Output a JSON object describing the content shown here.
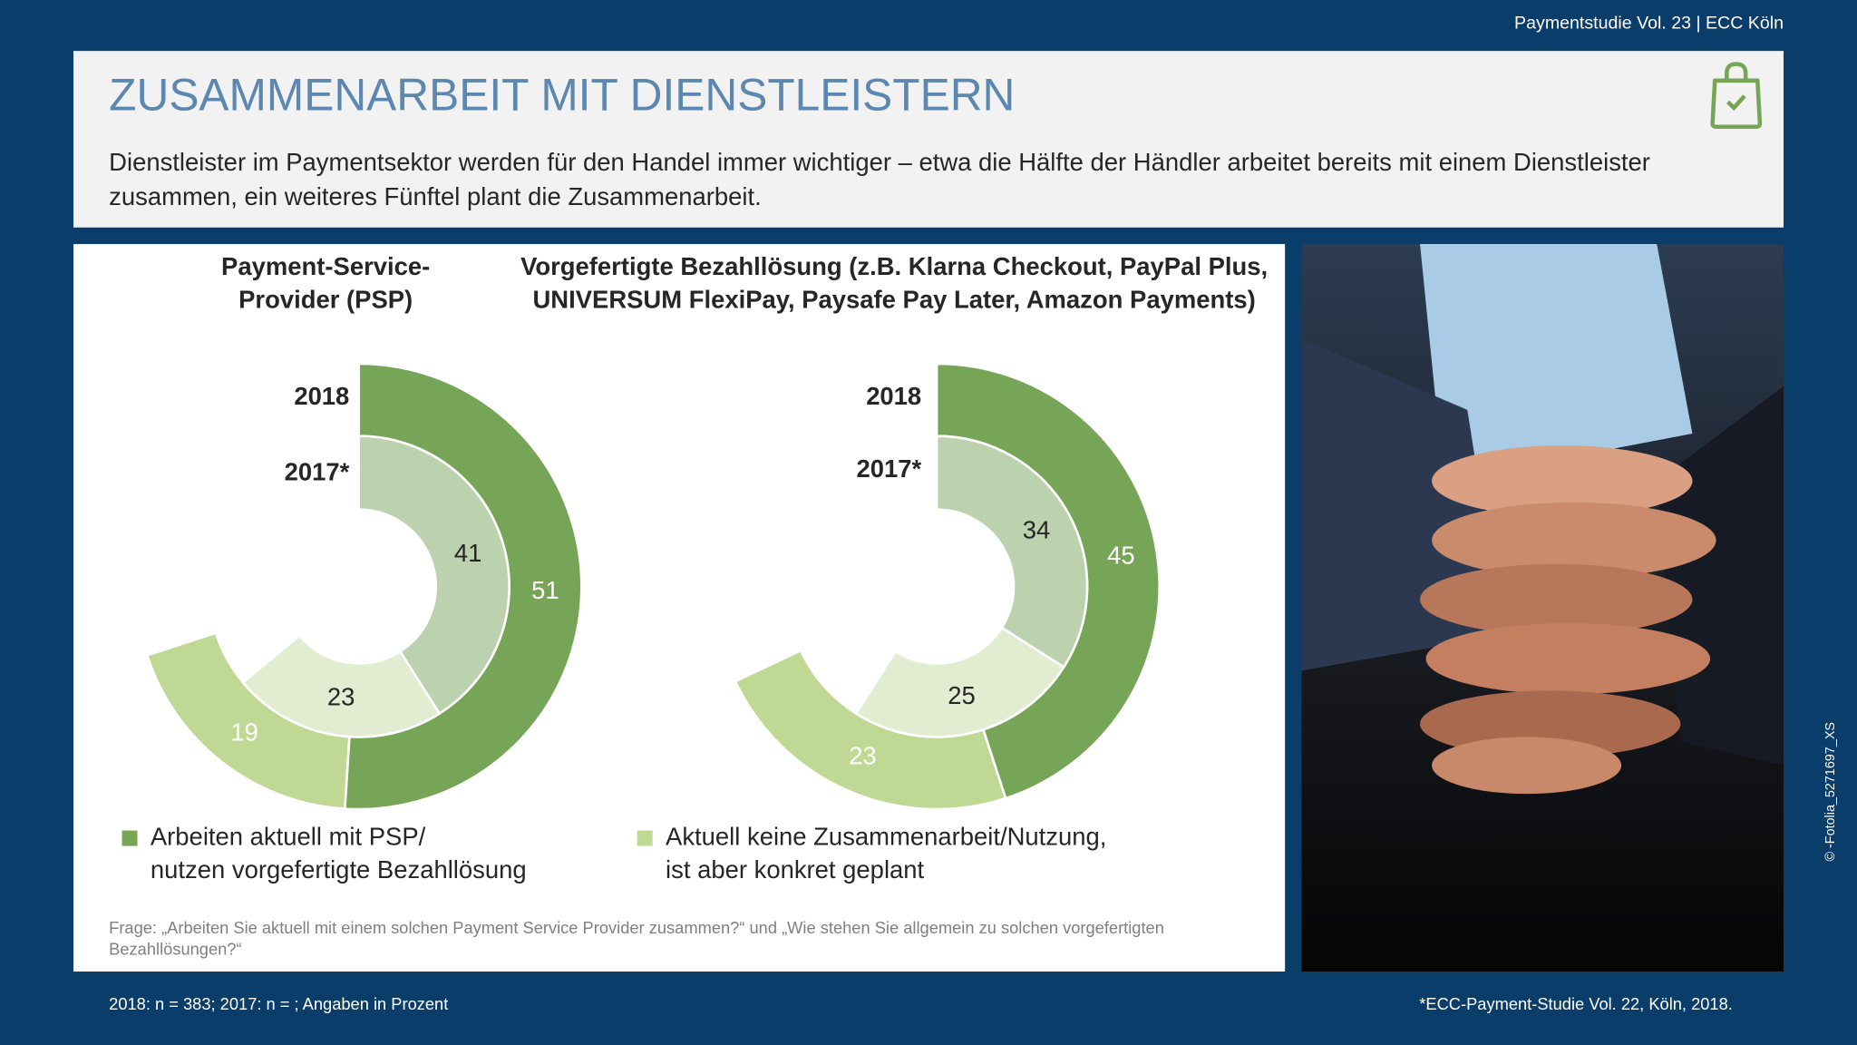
{
  "header": {
    "source": "Paymentstudie Vol. 23 | ECC Köln",
    "title": "ZUSAMMENARBEIT MIT DIENSTLEISTERN",
    "subtitle": "Dienstleister im Paymentsektor werden für den Handel immer wichtiger – etwa die Hälfte der Händler arbeitet bereits mit einem Dienstleister zusammen, ein weiteres Fünftel plant die Zusammenarbeit."
  },
  "chart_data": [
    {
      "type": "doughnut",
      "title": "Payment-Service-Provider (PSP)",
      "rings": [
        "2018",
        "2017*"
      ],
      "series": [
        {
          "colors": [
            "#77a557",
            "#bcd1ad"
          ],
          "values": [
            51,
            41
          ]
        },
        {
          "colors": [
            "#bfd894",
            "#e1ecd0"
          ],
          "values": [
            19,
            23
          ]
        }
      ]
    },
    {
      "type": "doughnut",
      "title": "Vorgefertigte Bezahllösung (z.B. Klarna Checkout, PayPal Plus, UNIVERSUM FlexiPay, Paysafe Pay Later, Amazon Payments)",
      "rings": [
        "2018",
        "2017*"
      ],
      "series": [
        {
          "colors": [
            "#77a557",
            "#bcd1ad"
          ],
          "values": [
            45,
            34
          ]
        },
        {
          "colors": [
            "#bfd894",
            "#e1ecd0"
          ],
          "values": [
            23,
            25
          ]
        }
      ]
    }
  ],
  "legend": [
    {
      "label": "Arbeiten aktuell mit PSP/\nnutzen vorgefertigte Bezahllösung",
      "color": "#77a557"
    },
    {
      "label": "Aktuell keine Zusammenarbeit/Nutzung,\n ist aber konkret geplant",
      "color": "#bfd894"
    }
  ],
  "question": "Frage: „Arbeiten Sie aktuell mit einem solchen Payment Service Provider zusammen?“ und „Wie stehen Sie allgemein zu solchen vorgefertigten Bezahllösungen?“",
  "footer_left": "2018: n = 383; 2017: n = ; Angaben in Prozent",
  "footer_right": "*ECC-Payment-Studie Vol. 22, Köln, 2018.",
  "credit": "© -Fotolia_5271697_XS"
}
